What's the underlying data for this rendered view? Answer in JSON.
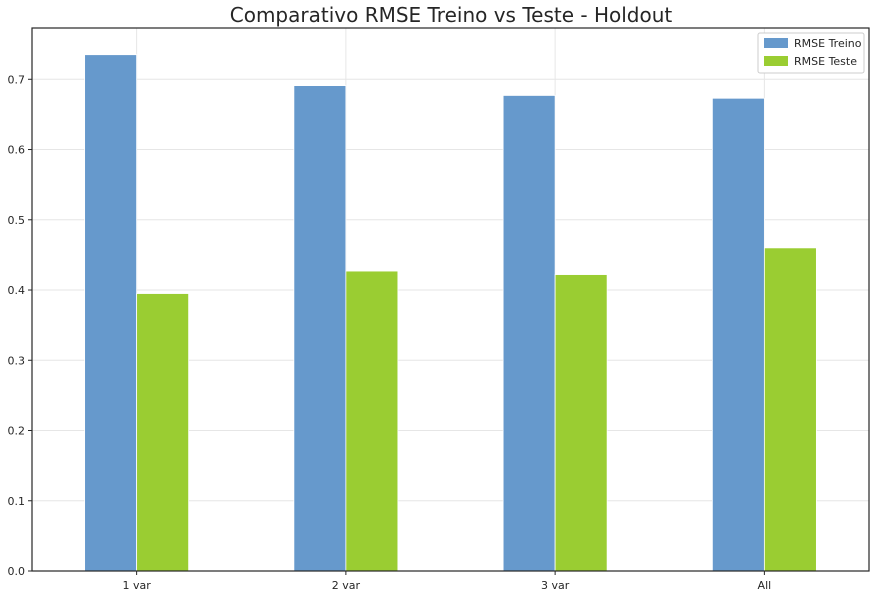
{
  "chart_data": {
    "type": "bar",
    "title": "Comparativo RMSE Treino vs Teste - Holdout",
    "xlabel": "",
    "ylabel": "",
    "categories": [
      "1 var",
      "2 var",
      "3 var",
      "All"
    ],
    "series": [
      {
        "name": "RMSE Treino",
        "color": "#6699cc",
        "values": [
          0.735,
          0.691,
          0.677,
          0.673
        ]
      },
      {
        "name": "RMSE Teste",
        "color": "#9acd32",
        "values": [
          0.395,
          0.427,
          0.422,
          0.46
        ]
      }
    ],
    "ylim": [
      0,
      0.773
    ],
    "yticks": [
      "0.0",
      "0.1",
      "0.2",
      "0.3",
      "0.4",
      "0.5",
      "0.6",
      "0.7"
    ],
    "grid": true,
    "legend_position": "top-right"
  }
}
